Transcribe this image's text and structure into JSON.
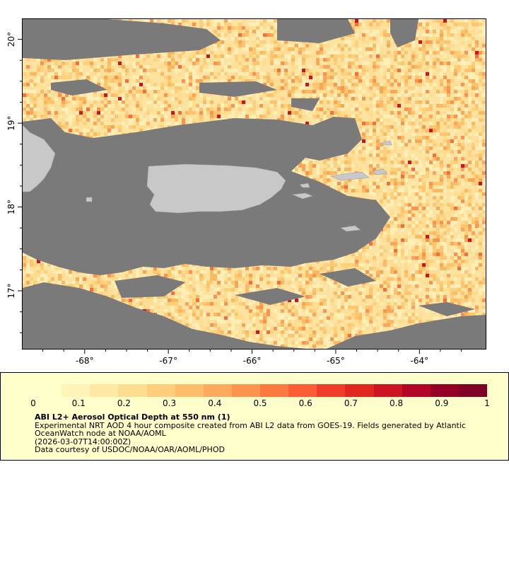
{
  "map": {
    "lon_range": [
      -68.75,
      -63.2
    ],
    "lat_range": [
      16.3,
      20.25
    ],
    "lon_ticks": [
      {
        "value": -68,
        "label": "-68°"
      },
      {
        "value": -67,
        "label": "-67°"
      },
      {
        "value": -66,
        "label": "-66°"
      },
      {
        "value": -65,
        "label": "-65°"
      },
      {
        "value": -64,
        "label": "-64°"
      }
    ],
    "lat_ticks": [
      {
        "value": 17,
        "label": "17°"
      },
      {
        "value": 18,
        "label": "18°"
      },
      {
        "value": 19,
        "label": "19°"
      },
      {
        "value": 20,
        "label": "20°"
      }
    ],
    "colors": {
      "no_data": "#7a7a7a",
      "land": "#c8c8c8",
      "frame": "#000000"
    }
  },
  "colorbar": {
    "range": [
      0,
      1
    ],
    "ticks": [
      {
        "value": 0,
        "label": "0"
      },
      {
        "value": 0.1,
        "label": "0.1"
      },
      {
        "value": 0.2,
        "label": "0.2"
      },
      {
        "value": 0.3,
        "label": "0.3"
      },
      {
        "value": 0.4,
        "label": "0.4"
      },
      {
        "value": 0.5,
        "label": "0.5"
      },
      {
        "value": 0.6,
        "label": "0.6"
      },
      {
        "value": 0.7,
        "label": "0.7"
      },
      {
        "value": 0.8,
        "label": "0.8"
      },
      {
        "value": 0.9,
        "label": "0.9"
      },
      {
        "value": 1,
        "label": "1"
      }
    ],
    "colors": [
      "#ffffcc",
      "#fff3b8",
      "#ffe8a4",
      "#fedc90",
      "#fecd7c",
      "#febe69",
      "#fea95b",
      "#fd944e",
      "#fc7a40",
      "#fa5c33",
      "#ef3d29",
      "#e02720",
      "#cc1423",
      "#b30526",
      "#960026",
      "#800026"
    ]
  },
  "legend": {
    "title": "ABI L2+ Aerosol Optical Depth at 550 nm (1)",
    "line1": "Experimental NRT AOD 4 hour composite created from ABI L2 data from GOES-19. Fields generated by Atlantic",
    "line2": "OceanWatch node at NOAA/AOML",
    "line3": "(2026-03-07T14:00:00Z)",
    "line4": "Data courtesy of USDOC/NOAA/OAR/AOML/PHOD"
  }
}
